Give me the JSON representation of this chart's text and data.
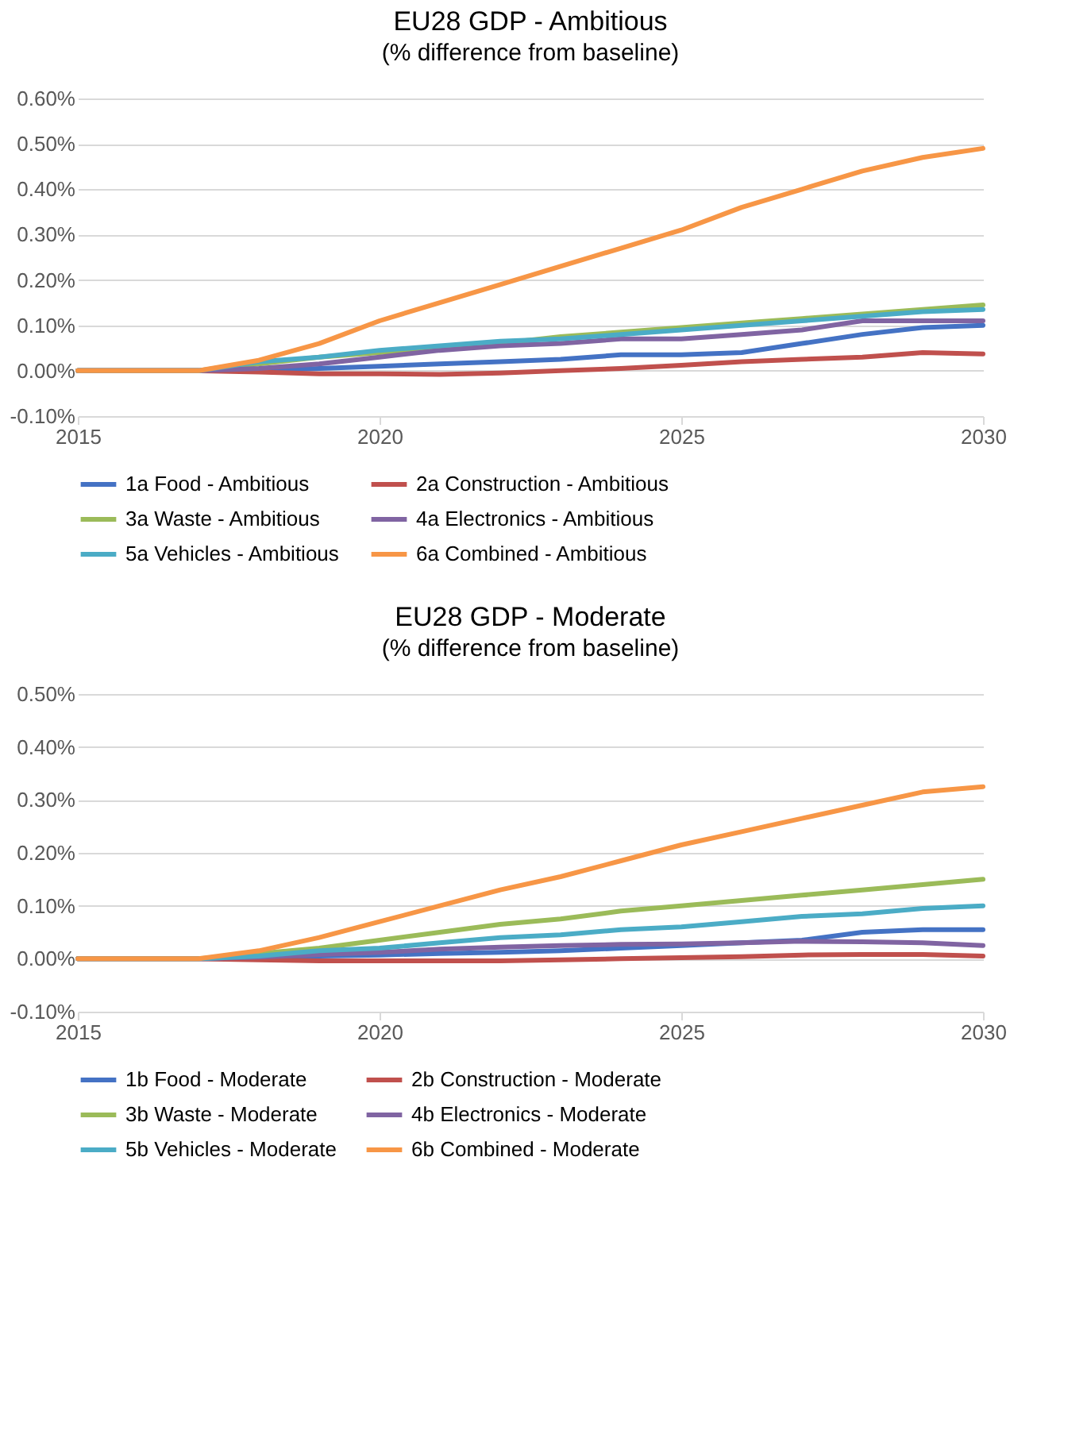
{
  "chart_data": [
    {
      "type": "line",
      "title": "EU28 GDP - Ambitious",
      "subtitle": "(% difference from baseline)",
      "x": [
        2015,
        2016,
        2017,
        2018,
        2019,
        2020,
        2021,
        2022,
        2023,
        2024,
        2025,
        2026,
        2027,
        2028,
        2029,
        2030
      ],
      "xlim": [
        2015,
        2030
      ],
      "xticks": [
        2015,
        2020,
        2025,
        2030
      ],
      "ylim": [
        -0.1,
        0.6
      ],
      "yticks": [
        {
          "value": -0.1,
          "label": "-0.10%"
        },
        {
          "value": 0,
          "label": "0.00%"
        },
        {
          "value": 0.1,
          "label": "0.10%"
        },
        {
          "value": 0.2,
          "label": "0.20%"
        },
        {
          "value": 0.3,
          "label": "0.30%"
        },
        {
          "value": 0.4,
          "label": "0.40%"
        },
        {
          "value": 0.5,
          "label": "0.50%"
        },
        {
          "value": 0.6,
          "label": "0.60%"
        }
      ],
      "grid": "y",
      "legend": "bottom",
      "marker": "none",
      "line_style": "solid",
      "series": [
        {
          "name": "1a Food - Ambitious",
          "color": "#4472c4",
          "values": [
            0,
            0,
            0,
            0,
            0.005,
            0.01,
            0.015,
            0.02,
            0.025,
            0.035,
            0.035,
            0.04,
            0.06,
            0.08,
            0.095,
            0.1
          ]
        },
        {
          "name": "2a Construction - Ambitious",
          "color": "#c0504d",
          "values": [
            0,
            0,
            0,
            -0.003,
            -0.007,
            -0.007,
            -0.008,
            -0.005,
            0,
            0.005,
            0.012,
            0.02,
            0.025,
            0.03,
            0.04,
            0.037
          ]
        },
        {
          "name": "3a Waste - Ambitious",
          "color": "#9bbb59",
          "values": [
            0,
            0,
            0,
            0.015,
            0.03,
            0.04,
            0.05,
            0.06,
            0.075,
            0.085,
            0.095,
            0.105,
            0.115,
            0.125,
            0.135,
            0.145
          ]
        },
        {
          "name": "4a Electronics - Ambitious",
          "color": "#8064a2",
          "values": [
            0,
            0,
            0,
            0.005,
            0.015,
            0.03,
            0.045,
            0.055,
            0.06,
            0.07,
            0.07,
            0.08,
            0.09,
            0.11,
            0.11,
            0.11
          ]
        },
        {
          "name": "5a Vehicles - Ambitious",
          "color": "#4bacc6",
          "values": [
            0,
            0,
            0,
            0.02,
            0.03,
            0.045,
            0.055,
            0.065,
            0.07,
            0.08,
            0.09,
            0.1,
            0.11,
            0.12,
            0.13,
            0.135
          ]
        },
        {
          "name": "6a Combined - Ambitious",
          "color": "#f79646",
          "values": [
            0,
            0,
            0,
            0.023,
            0.06,
            0.11,
            0.15,
            0.19,
            0.23,
            0.27,
            0.31,
            0.36,
            0.4,
            0.44,
            0.47,
            0.49
          ]
        }
      ]
    },
    {
      "type": "line",
      "title": "EU28 GDP - Moderate",
      "subtitle": "(% difference from baseline)",
      "x": [
        2015,
        2016,
        2017,
        2018,
        2019,
        2020,
        2021,
        2022,
        2023,
        2024,
        2025,
        2026,
        2027,
        2028,
        2029,
        2030
      ],
      "xlim": [
        2015,
        2030
      ],
      "xticks": [
        2015,
        2020,
        2025,
        2030
      ],
      "ylim": [
        -0.1,
        0.5
      ],
      "yticks": [
        {
          "value": -0.1,
          "label": "-0.10%"
        },
        {
          "value": 0,
          "label": "0.00%"
        },
        {
          "value": 0.1,
          "label": "0.10%"
        },
        {
          "value": 0.2,
          "label": "0.20%"
        },
        {
          "value": 0.3,
          "label": "0.30%"
        },
        {
          "value": 0.4,
          "label": "0.40%"
        },
        {
          "value": 0.5,
          "label": "0.50%"
        }
      ],
      "grid": "y",
      "legend": "bottom",
      "marker": "none",
      "line_style": "solid",
      "series": [
        {
          "name": "1b Food - Moderate",
          "color": "#4472c4",
          "values": [
            0,
            0,
            0,
            0,
            0.005,
            0.007,
            0.01,
            0.012,
            0.015,
            0.02,
            0.025,
            0.03,
            0.035,
            0.05,
            0.055,
            0.055
          ]
        },
        {
          "name": "2b Construction - Moderate",
          "color": "#c0504d",
          "values": [
            0,
            0,
            0,
            -0.002,
            -0.004,
            -0.004,
            -0.004,
            -0.004,
            -0.002,
            0,
            0.002,
            0.004,
            0.007,
            0.008,
            0.008,
            0.005
          ]
        },
        {
          "name": "3b Waste - Moderate",
          "color": "#9bbb59",
          "values": [
            0,
            0,
            0,
            0.01,
            0.02,
            0.035,
            0.05,
            0.065,
            0.075,
            0.09,
            0.1,
            0.11,
            0.12,
            0.13,
            0.14,
            0.15
          ]
        },
        {
          "name": "4b Electronics - Moderate",
          "color": "#8064a2",
          "values": [
            0,
            0,
            0,
            0.003,
            0.008,
            0.012,
            0.018,
            0.022,
            0.025,
            0.027,
            0.028,
            0.03,
            0.033,
            0.032,
            0.03,
            0.025
          ]
        },
        {
          "name": "5b Vehicles - Moderate",
          "color": "#4bacc6",
          "values": [
            0,
            0,
            0,
            0.005,
            0.015,
            0.02,
            0.03,
            0.04,
            0.045,
            0.055,
            0.06,
            0.07,
            0.08,
            0.085,
            0.095,
            0.1
          ]
        },
        {
          "name": "6b Combined - Moderate",
          "color": "#f79646",
          "values": [
            0,
            0,
            0,
            0.015,
            0.04,
            0.07,
            0.1,
            0.13,
            0.155,
            0.185,
            0.215,
            0.24,
            0.265,
            0.29,
            0.315,
            0.325
          ]
        }
      ]
    }
  ]
}
